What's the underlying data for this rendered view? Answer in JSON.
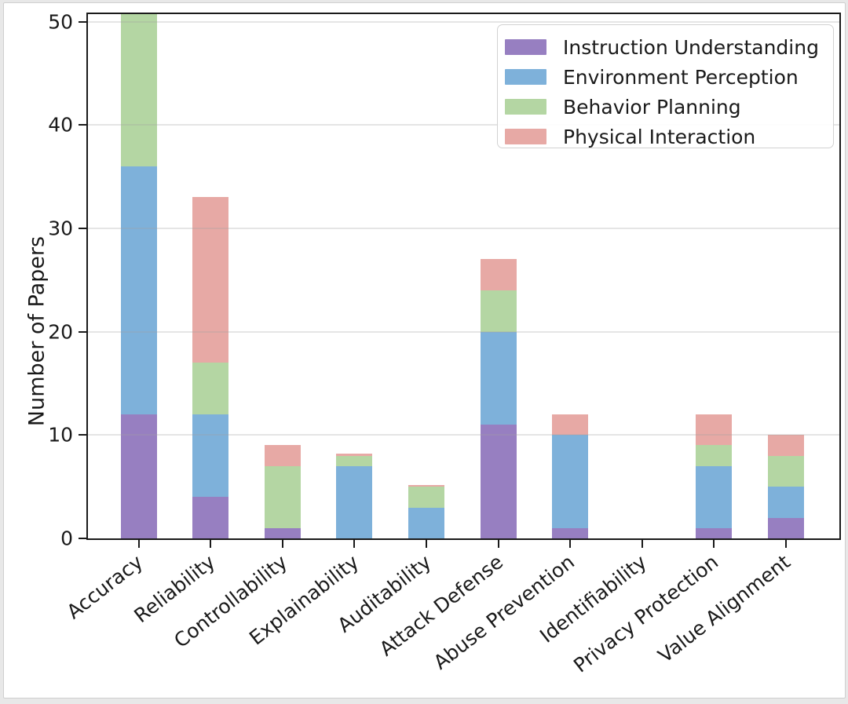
{
  "chart_data": {
    "type": "bar",
    "stacked": true,
    "title": "",
    "xlabel": "",
    "ylabel": "Number of Papers",
    "ylim": [
      0,
      51
    ],
    "yticks": [
      0,
      10,
      20,
      30,
      40,
      50
    ],
    "grid": "horizontal",
    "legend_position": "upper-right",
    "categories": [
      "Accuracy",
      "Reliability",
      "Controllability",
      "Explainability",
      "Auditability",
      "Attack Defense",
      "Abuse Prevention",
      "Identifiability",
      "Privacy Protection",
      "Value Alignment"
    ],
    "series": [
      {
        "name": "Instruction Understanding",
        "color": "#977fc1",
        "values": [
          12,
          4,
          1,
          0,
          0,
          11,
          1,
          0,
          1,
          2
        ]
      },
      {
        "name": "Environment Perception",
        "color": "#7eb1da",
        "values": [
          24,
          8,
          0,
          7,
          3,
          9,
          9,
          0,
          6,
          3
        ]
      },
      {
        "name": "Behavior Planning",
        "color": "#b4d6a3",
        "values": [
          16,
          5,
          6,
          1,
          2,
          4,
          0,
          0,
          2,
          3
        ]
      },
      {
        "name": "Physical Interaction",
        "color": "#e7a9a5",
        "values": [
          0,
          16,
          2,
          0,
          0,
          3,
          2,
          0,
          3,
          2
        ]
      }
    ],
    "totals": [
      52,
      33,
      9,
      8,
      5,
      27,
      12,
      0,
      12,
      10
    ],
    "note_top_bar_clipped": "Accuracy bar extends past the top axis limit and is clipped"
  },
  "style": {
    "axis_color": "#1a1a1a",
    "grid_color": "#e3e3e3",
    "background": "#ffffff",
    "page_background": "#e8e8e8",
    "thin_red_cap_category_indices": [
      3,
      4
    ]
  }
}
